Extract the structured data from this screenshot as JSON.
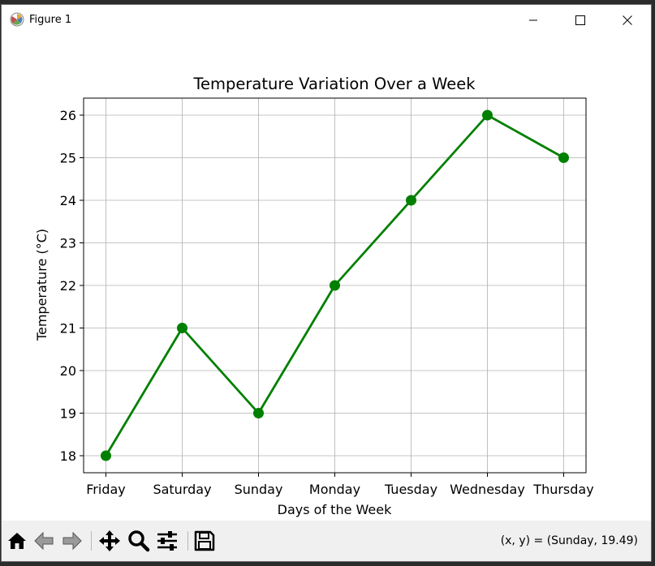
{
  "window": {
    "title": "Figure 1",
    "icons": {
      "app": "matplotlib-icon",
      "minimize": "minimize-icon",
      "maximize": "maximize-icon",
      "close": "close-icon"
    }
  },
  "toolbar": {
    "buttons": [
      {
        "name": "home-button",
        "icon": "home-icon"
      },
      {
        "name": "back-button",
        "icon": "arrow-left-icon"
      },
      {
        "name": "forward-button",
        "icon": "arrow-right-icon"
      },
      {
        "name": "pan-button",
        "icon": "move-icon"
      },
      {
        "name": "zoom-button",
        "icon": "magnifier-icon"
      },
      {
        "name": "configure-subplots-button",
        "icon": "sliders-icon"
      },
      {
        "name": "save-button",
        "icon": "floppy-disk-icon"
      }
    ],
    "coordinates": "(x, y) = (Sunday, 19.49)"
  },
  "chart_data": {
    "type": "line",
    "title": "Temperature Variation Over a Week",
    "xlabel": "Days of the Week",
    "ylabel": "Temperature (°C)",
    "categories": [
      "Friday",
      "Saturday",
      "Sunday",
      "Monday",
      "Tuesday",
      "Wednesday",
      "Thursday"
    ],
    "values": [
      18,
      21,
      19,
      22,
      24,
      26,
      25
    ],
    "yticks": [
      18,
      19,
      20,
      21,
      22,
      23,
      24,
      25,
      26
    ],
    "ylim": [
      17.6,
      26.4
    ],
    "grid": true,
    "marker": "circle",
    "color": "#008000"
  }
}
